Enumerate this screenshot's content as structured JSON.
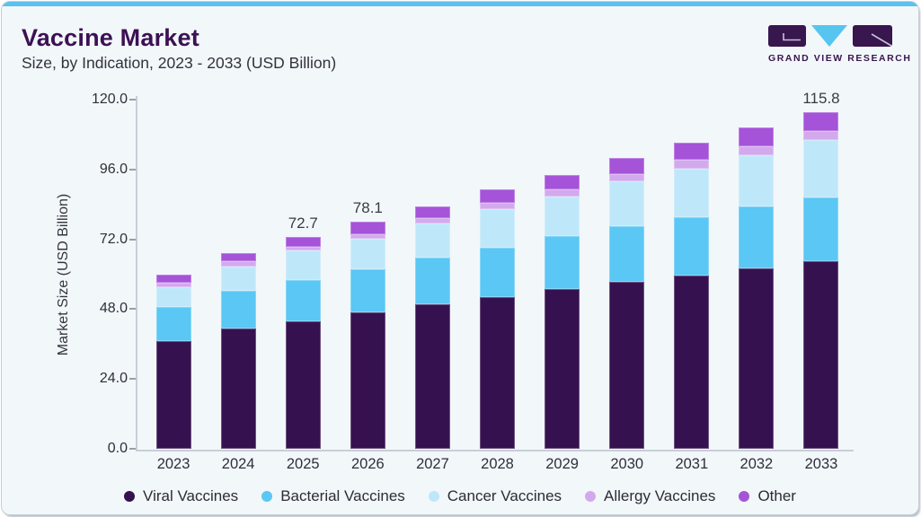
{
  "header": {
    "title": "Vaccine Market",
    "subtitle": "Size, by Indication, 2023 - 2033 (USD Billion)"
  },
  "logo": {
    "text": "GRAND VIEW RESEARCH"
  },
  "colors": {
    "accent_bar": "#5ac1f0",
    "title_purple": "#3d1054",
    "logo_dark": "#38164e",
    "logo_cyan": "#56c5ef",
    "logo_line": "#c9c0d8",
    "card_bg": "#f2f7fa"
  },
  "chart_data": {
    "type": "bar",
    "stacked": true,
    "title": "Vaccine Market Size, by Indication, 2023 - 2033 (USD Billion)",
    "xlabel": "",
    "ylabel": "Market Size (USD Billion)",
    "ylim": [
      0,
      120
    ],
    "yticks": [
      0,
      24,
      48,
      72,
      96,
      120
    ],
    "ytick_labels": [
      "0.0",
      "24.0",
      "48.0",
      "72.0",
      "96.0",
      "120.0"
    ],
    "grid": false,
    "legend_position": "bottom",
    "categories": [
      "2023",
      "2024",
      "2025",
      "2026",
      "2027",
      "2028",
      "2029",
      "2030",
      "2031",
      "2032",
      "2033"
    ],
    "series": [
      {
        "name": "Viral Vaccines",
        "color": "#36114f",
        "values": [
          37.0,
          41.2,
          43.8,
          46.9,
          49.6,
          52.3,
          54.9,
          57.3,
          59.7,
          62.1,
          64.4
        ]
      },
      {
        "name": "Bacterial Vaccines",
        "color": "#5ac7f4",
        "values": [
          11.7,
          13.1,
          14.2,
          14.9,
          16.0,
          16.9,
          18.2,
          19.1,
          19.9,
          21.3,
          22.1
        ]
      },
      {
        "name": "Cancer Vaccines",
        "color": "#bfe7fa",
        "values": [
          6.9,
          8.4,
          10.1,
          10.5,
          11.7,
          13.1,
          13.5,
          15.5,
          16.8,
          17.4,
          19.6
        ]
      },
      {
        "name": "Allergy Vaccines",
        "color": "#d3a9ee",
        "values": [
          1.6,
          1.7,
          1.4,
          1.5,
          1.9,
          2.3,
          2.4,
          2.6,
          3.1,
          3.2,
          3.1
        ]
      },
      {
        "name": "Other",
        "color": "#a553d8",
        "values": [
          2.6,
          2.7,
          3.2,
          4.3,
          4.1,
          4.4,
          5.2,
          5.5,
          5.7,
          6.5,
          6.6
        ]
      }
    ],
    "bar_totals": [
      59.8,
      67.1,
      72.7,
      78.1,
      83.3,
      89.0,
      94.2,
      100.0,
      105.2,
      110.5,
      115.8
    ],
    "bar_labels": [
      "",
      "",
      "72.7",
      "78.1",
      "",
      "",
      "",
      "",
      "",
      "",
      "115.8"
    ]
  }
}
